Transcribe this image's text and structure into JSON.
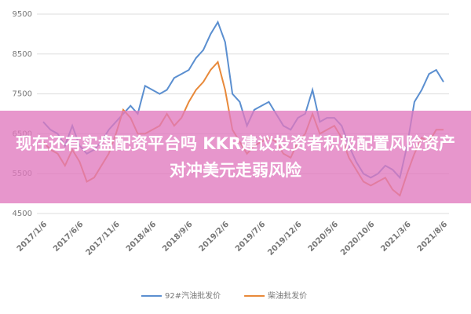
{
  "chart_data": {
    "type": "line",
    "categories": [
      "2017/1/6",
      null,
      null,
      null,
      null,
      "2017/6/6",
      null,
      null,
      null,
      null,
      "2017/11/6",
      null,
      null,
      null,
      null,
      "2018/4/6",
      null,
      null,
      null,
      null,
      "2018/9/6",
      null,
      null,
      null,
      null,
      "2019/2/6",
      null,
      null,
      null,
      null,
      "2019/7/6",
      null,
      null,
      null,
      null,
      "2019/12/6",
      null,
      null,
      null,
      null,
      "2020/5/6",
      null,
      null,
      null,
      null,
      "2020/10/6",
      null,
      null,
      null,
      null,
      "2021/3/6",
      null,
      null,
      null,
      null,
      "2021/8/6"
    ],
    "series": [
      {
        "name": "92#汽油批发价",
        "color": "#5b8fd0",
        "values": [
          6800,
          6600,
          6500,
          6200,
          6700,
          6200,
          6000,
          6100,
          6300,
          6600,
          6800,
          7000,
          7200,
          7000,
          7700,
          7600,
          7500,
          7600,
          7900,
          8000,
          8100,
          8400,
          8600,
          9000,
          9300,
          8800,
          7500,
          7300,
          6700,
          7100,
          7200,
          7300,
          7000,
          6700,
          6600,
          6900,
          7000,
          7600,
          6800,
          6900,
          6900,
          6700,
          6200,
          5800,
          5500,
          5400,
          5500,
          5700,
          5600,
          5400,
          6200,
          7300,
          7600,
          8000,
          8100,
          7800
        ]
      },
      {
        "name": "柴油批发价",
        "color": "#e8893a",
        "values": [
          6300,
          6100,
          6000,
          5700,
          6100,
          5800,
          5300,
          5400,
          5700,
          6000,
          6500,
          7100,
          6900,
          6500,
          6500,
          6600,
          6700,
          7000,
          6700,
          6900,
          7300,
          7600,
          7800,
          8100,
          8300,
          7600,
          6600,
          6300,
          6000,
          6200,
          6300,
          6400,
          6300,
          6000,
          5900,
          6300,
          6500,
          7000,
          6500,
          6600,
          6700,
          6400,
          5900,
          5600,
          5300,
          5200,
          5300,
          5400,
          5100,
          4950,
          5500,
          6000,
          6400,
          6300,
          6600,
          6600
        ]
      }
    ],
    "ylim": [
      4500,
      9500
    ],
    "yticks": [
      4500,
      5500,
      6500,
      7500,
      8500,
      9500
    ],
    "grid": true
  },
  "banner": {
    "text": "现在还有实盘配资平台吗 KKR建议投资者积极配置风险资产 对冲美元走弱风险"
  }
}
